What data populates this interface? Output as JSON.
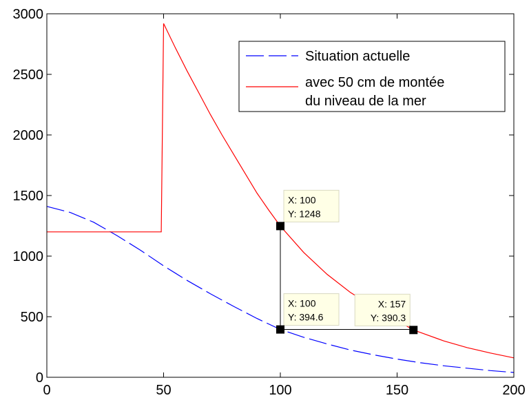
{
  "chart_data": {
    "type": "line",
    "title": "",
    "xlabel": "",
    "ylabel": "",
    "xlim": [
      0,
      200
    ],
    "ylim": [
      0,
      3000
    ],
    "x_ticks": [
      0,
      50,
      100,
      150,
      200
    ],
    "y_ticks": [
      0,
      500,
      1000,
      1500,
      2000,
      2500,
      3000
    ],
    "x_tick_labels": [
      "0",
      "50",
      "100",
      "150",
      "200"
    ],
    "y_tick_labels": [
      "0",
      "500",
      "1000",
      "1500",
      "2000",
      "2500",
      "3000"
    ],
    "grid": false,
    "legend_position": "top-right",
    "series": [
      {
        "name": "Situation actuelle",
        "color": "#0000ff",
        "style": "dashed",
        "x": [
          0,
          10,
          20,
          30,
          40,
          50,
          60,
          70,
          80,
          90,
          100,
          110,
          120,
          130,
          140,
          150,
          160,
          170,
          180,
          190,
          200
        ],
        "y": [
          1410,
          1360,
          1280,
          1170,
          1050,
          920,
          800,
          690,
          585,
          485,
          394.6,
          330,
          275,
          225,
          185,
          150,
          120,
          95,
          75,
          55,
          40
        ]
      },
      {
        "name": "avec 50 cm de montée du niveau de la mer",
        "legend_lines": [
          "avec 50 cm de montée",
          "du niveau de la mer"
        ],
        "color": "#ff0000",
        "style": "solid",
        "x": [
          0,
          49,
          50,
          55,
          60,
          65,
          70,
          75,
          80,
          85,
          90,
          95,
          100,
          110,
          120,
          130,
          140,
          150,
          157,
          160,
          170,
          180,
          190,
          200
        ],
        "y": [
          1200,
          1200,
          2920,
          2720,
          2530,
          2350,
          2170,
          2000,
          1840,
          1680,
          1520,
          1380,
          1248,
          1030,
          850,
          700,
          580,
          470,
          390.3,
          370,
          300,
          245,
          200,
          160
        ]
      }
    ],
    "datatips": [
      {
        "x": 100,
        "y": 1248,
        "label_x": "X: 100",
        "label_y": "Y: 1248",
        "side": "right"
      },
      {
        "x": 100,
        "y": 394.6,
        "label_x": "X: 100",
        "label_y": "Y: 394.6",
        "side": "right"
      },
      {
        "x": 157,
        "y": 390.3,
        "label_x": "X: 157",
        "label_y": "Y: 390.3",
        "side": "left"
      }
    ],
    "annotation_lines": [
      {
        "x1": 100,
        "y1": 1248,
        "x2": 100,
        "y2": 394.6
      },
      {
        "x1": 100,
        "y1": 394.6,
        "x2": 157,
        "y2": 394.6
      }
    ]
  }
}
